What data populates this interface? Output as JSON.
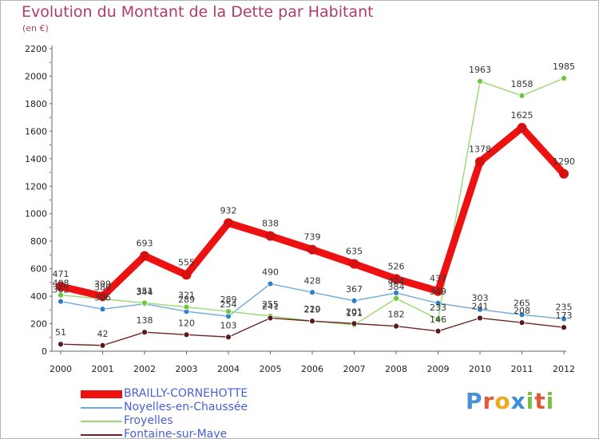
{
  "header": {
    "title": "Evolution du Montant de la Dette par Habitant",
    "subtitle": "(en €)"
  },
  "logo": {
    "text": "Proxiti",
    "letters": [
      "P",
      "r",
      "o",
      "x",
      "i",
      "t",
      "i"
    ],
    "colors": [
      "#4a90d9",
      "#e05a3a",
      "#f2a81d",
      "#3a8fd9",
      "#7ac143",
      "#e05a3a",
      "#7ac143"
    ]
  },
  "chart_data": {
    "type": "line",
    "title": "Evolution du Montant de la Dette par Habitant",
    "subtitle": "(en €)",
    "x": [
      "2000",
      "2001",
      "2002",
      "2003",
      "2004",
      "2005",
      "2006",
      "2007",
      "2008",
      "2009",
      "2010",
      "2011",
      "2012"
    ],
    "ylim": [
      0,
      2200
    ],
    "yticks": [
      0,
      200,
      400,
      600,
      800,
      1000,
      1200,
      1400,
      1600,
      1800,
      2000,
      2200
    ],
    "grid": false,
    "legend_position": "bottom-left",
    "series": [
      {
        "name": "BRAILLY-CORNEHOTTE",
        "color": "#ee1111",
        "marker": "#d61010",
        "values": [
          471,
          399,
          693,
          555,
          932,
          838,
          739,
          635,
          526,
          437,
          1378,
          1625,
          1290
        ]
      },
      {
        "name": "Noyelles-en-Chaussée",
        "color": "#6fa8d6",
        "marker": "#2f7fc8",
        "values": [
          362,
          306,
          344,
          289,
          254,
          490,
          428,
          367,
          424,
          349,
          303,
          265,
          235
        ]
      },
      {
        "name": "Froyelles",
        "color": "#99d970",
        "marker": "#6ac73a",
        "values": [
          408,
          380,
          351,
          321,
          289,
          255,
          220,
          191,
          384,
          233,
          1963,
          1858,
          1985
        ]
      },
      {
        "name": "Fontaine-sur-Maye",
        "color": "#6b2424",
        "marker": "#5a1a1a",
        "values": [
          51,
          42,
          138,
          120,
          103,
          241,
          219,
          201,
          182,
          146,
          241,
          208,
          173
        ]
      }
    ]
  }
}
